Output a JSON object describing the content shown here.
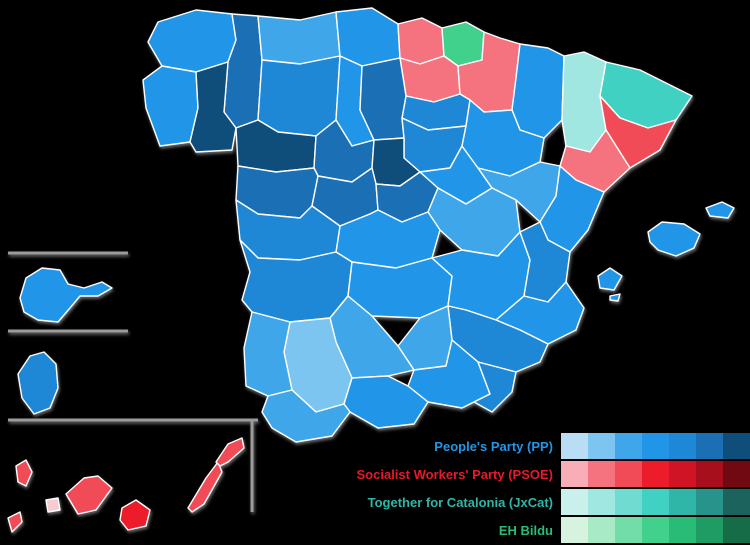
{
  "legend": {
    "parties": [
      {
        "id": "pp",
        "label": "People's Party (PP)",
        "label_color": "#2196e8",
        "shades": [
          "#b8ddf4",
          "#7cc5f1",
          "#3fa7e9",
          "#2196e8",
          "#1e88d6",
          "#1a6fb5",
          "#0f4d7a"
        ]
      },
      {
        "id": "psoe",
        "label": "Socialist Workers' Party (PSOE)",
        "label_color": "#e8192a",
        "shades": [
          "#f9adb6",
          "#f5737f",
          "#f14b57",
          "#ec1c2b",
          "#d11425",
          "#a60f1b",
          "#700911"
        ]
      },
      {
        "id": "jxcat",
        "label": "Together for Catalonia (JxCat)",
        "label_color": "#2fb6a8",
        "shades": [
          "#caf0ec",
          "#9fe7e0",
          "#70dcd1",
          "#41d1c2",
          "#2fb6a8",
          "#28938a",
          "#1d635d"
        ]
      },
      {
        "id": "ehbildu",
        "label": "EH Bildu",
        "label_color": "#28bc77",
        "shades": [
          "#d6f3e0",
          "#a9eac6",
          "#72dda8",
          "#41d18c",
          "#28bc77",
          "#1f9c63",
          "#166c47"
        ]
      }
    ]
  },
  "map": {
    "border_color": "#ffffff",
    "shadow_color": "#808080",
    "inset_line_color": "#9b9b9b",
    "provinces": [
      {
        "id": "coruna",
        "name": "A Coruña",
        "party": "PP",
        "color": "#2196e8"
      },
      {
        "id": "lugo",
        "name": "Lugo",
        "party": "PP",
        "color": "#1a6fb5"
      },
      {
        "id": "pontevedra",
        "name": "Pontevedra",
        "party": "PP",
        "color": "#2196e8"
      },
      {
        "id": "ourense",
        "name": "Ourense",
        "party": "PP",
        "color": "#0f4d7a"
      },
      {
        "id": "asturias",
        "name": "Asturias",
        "party": "PP",
        "color": "#3fa7e9"
      },
      {
        "id": "cantabria",
        "name": "Cantabria",
        "party": "PP",
        "color": "#2196e8"
      },
      {
        "id": "vizcaya",
        "name": "Biscay",
        "party": "PSOE",
        "color": "#f5737f"
      },
      {
        "id": "guipuzcoa",
        "name": "Gipuzkoa",
        "party": "EH Bildu",
        "color": "#41d18c"
      },
      {
        "id": "alava",
        "name": "Álava",
        "party": "PSOE",
        "color": "#f5737f"
      },
      {
        "id": "navarra",
        "name": "Navarre",
        "party": "PSOE",
        "color": "#f5737f"
      },
      {
        "id": "larioja",
        "name": "La Rioja",
        "party": "PP",
        "color": "#1e88d6"
      },
      {
        "id": "leon",
        "name": "León",
        "party": "PP",
        "color": "#1e88d6"
      },
      {
        "id": "palencia",
        "name": "Palencia",
        "party": "PP",
        "color": "#2196e8"
      },
      {
        "id": "burgos",
        "name": "Burgos",
        "party": "PP",
        "color": "#1a6fb5"
      },
      {
        "id": "zamora",
        "name": "Zamora",
        "party": "PP",
        "color": "#0f4d7a"
      },
      {
        "id": "valladolid",
        "name": "Valladolid",
        "party": "PP",
        "color": "#1a6fb5"
      },
      {
        "id": "soria",
        "name": "Soria",
        "party": "PP",
        "color": "#1e88d6"
      },
      {
        "id": "segovia",
        "name": "Segovia",
        "party": "PP",
        "color": "#0f4d7a"
      },
      {
        "id": "salamanca",
        "name": "Salamanca",
        "party": "PP",
        "color": "#1a6fb5"
      },
      {
        "id": "avila",
        "name": "Ávila",
        "party": "PP",
        "color": "#1a6fb5"
      },
      {
        "id": "madrid",
        "name": "Madrid",
        "party": "PP",
        "color": "#1a6fb5"
      },
      {
        "id": "guadalajara",
        "name": "Guadalajara",
        "party": "PP",
        "color": "#2196e8"
      },
      {
        "id": "cuenca",
        "name": "Cuenca",
        "party": "PP",
        "color": "#3fa7e9"
      },
      {
        "id": "toledo",
        "name": "Toledo",
        "party": "PP",
        "color": "#2196e8"
      },
      {
        "id": "ciudadreal",
        "name": "Ciudad Real",
        "party": "PP",
        "color": "#2196e8"
      },
      {
        "id": "albacete",
        "name": "Albacete",
        "party": "PP",
        "color": "#2196e8"
      },
      {
        "id": "caceres",
        "name": "Cáceres",
        "party": "PP",
        "color": "#1e88d6"
      },
      {
        "id": "badajoz",
        "name": "Badajoz",
        "party": "PP",
        "color": "#1e88d6"
      },
      {
        "id": "huesca",
        "name": "Huesca",
        "party": "PP",
        "color": "#2196e8"
      },
      {
        "id": "zaragoza",
        "name": "Zaragoza",
        "party": "PP",
        "color": "#2196e8"
      },
      {
        "id": "teruel",
        "name": "Teruel",
        "party": "PP",
        "color": "#3fa7e9"
      },
      {
        "id": "lleida",
        "name": "Lleida",
        "party": "JxCat",
        "color": "#9fe7e0"
      },
      {
        "id": "girona",
        "name": "Girona",
        "party": "JxCat",
        "color": "#41d1c2"
      },
      {
        "id": "barcelona",
        "name": "Barcelona",
        "party": "PSOE",
        "color": "#f14b57"
      },
      {
        "id": "tarragona",
        "name": "Tarragona",
        "party": "PSOE",
        "color": "#f5737f"
      },
      {
        "id": "castellon",
        "name": "Castellón",
        "party": "PP",
        "color": "#2196e8"
      },
      {
        "id": "valencia",
        "name": "Valencia",
        "party": "PP",
        "color": "#1e88d6"
      },
      {
        "id": "alicante",
        "name": "Alicante",
        "party": "PP",
        "color": "#2196e8"
      },
      {
        "id": "murcia",
        "name": "Murcia",
        "party": "PP",
        "color": "#1e88d6"
      },
      {
        "id": "huelva",
        "name": "Huelva",
        "party": "PP",
        "color": "#3fa7e9"
      },
      {
        "id": "sevilla",
        "name": "Seville",
        "party": "PP",
        "color": "#7cc5f1"
      },
      {
        "id": "cadiz",
        "name": "Cádiz",
        "party": "PP",
        "color": "#3fa7e9"
      },
      {
        "id": "cordoba",
        "name": "Córdoba",
        "party": "PP",
        "color": "#3fa7e9"
      },
      {
        "id": "jaen",
        "name": "Jaén",
        "party": "PP",
        "color": "#3fa7e9"
      },
      {
        "id": "granada",
        "name": "Granada",
        "party": "PP",
        "color": "#2196e8"
      },
      {
        "id": "malaga",
        "name": "Málaga",
        "party": "PP",
        "color": "#2196e8"
      },
      {
        "id": "almeria",
        "name": "Almería",
        "party": "PP",
        "color": "#1e88d6"
      },
      {
        "id": "mallorca",
        "name": "Balearic Islands (Mallorca)",
        "party": "PP",
        "color": "#2196e8"
      },
      {
        "id": "menorca",
        "name": "Balearic Islands (Menorca)",
        "party": "PP",
        "color": "#2196e8"
      },
      {
        "id": "ibiza",
        "name": "Balearic Islands (Ibiza)",
        "party": "PP",
        "color": "#2196e8"
      },
      {
        "id": "formentera",
        "name": "Balearic Islands (Formentera)",
        "party": "PP",
        "color": "#2196e8"
      },
      {
        "id": "lanzarote",
        "name": "Lanzarote",
        "party": "PSOE",
        "color": "#f14b57"
      },
      {
        "id": "fuerteventura",
        "name": "Fuerteventura",
        "party": "PSOE",
        "color": "#f14b57"
      },
      {
        "id": "grancanaria",
        "name": "Gran Canaria",
        "party": "PSOE",
        "color": "#ec1c2b"
      },
      {
        "id": "tenerife",
        "name": "Tenerife",
        "party": "PSOE",
        "color": "#f14b57"
      },
      {
        "id": "lagomera",
        "name": "La Gomera",
        "party": "PSOE",
        "color": "#f6ccd2"
      },
      {
        "id": "lapalma",
        "name": "La Palma",
        "party": "PSOE",
        "color": "#f14b57"
      },
      {
        "id": "elhierro",
        "name": "El Hierro",
        "party": "PSOE",
        "color": "#f14b57"
      },
      {
        "id": "ceuta",
        "name": "Ceuta",
        "party": "PP",
        "color": "#2196e8"
      },
      {
        "id": "melilla",
        "name": "Melilla",
        "party": "PP",
        "color": "#1e88d6"
      }
    ]
  }
}
